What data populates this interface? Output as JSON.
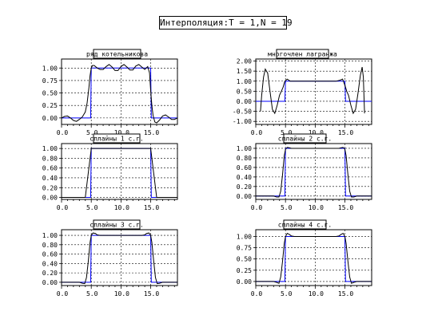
{
  "window_title": "Интерполяция:T = 1,N = 19",
  "chart_data": [
    {
      "type": "line",
      "title": "ряд котельникова",
      "xticks": [
        "0.0",
        "5.0",
        "10.0",
        "15.0"
      ],
      "yticks": [
        "0.00",
        "0.25",
        "0.50",
        "0.75",
        "1.00"
      ],
      "xlim": [
        0,
        19.5
      ],
      "ylim": [
        -0.13,
        1.18
      ],
      "grid": true,
      "series": [
        {
          "color": "#0000ff",
          "x": [
            0,
            4.9,
            5.0,
            15.0,
            15.1,
            19.5
          ],
          "y": [
            0,
            0,
            1,
            1,
            0,
            0
          ]
        },
        {
          "color": "#000000",
          "x": [
            0,
            0.5,
            1,
            1.5,
            2,
            2.5,
            3,
            3.5,
            4,
            4.3,
            4.6,
            4.8,
            5,
            5.2,
            5.5,
            6,
            6.5,
            7,
            7.5,
            8,
            8.5,
            9,
            9.5,
            10,
            10.5,
            11,
            11.5,
            12,
            12.5,
            13,
            13.5,
            14,
            14.5,
            14.8,
            15,
            15.2,
            15.4,
            15.7,
            16,
            16.5,
            17,
            17.5,
            18,
            18.5,
            19,
            19.5
          ],
          "y": [
            0.0,
            0.03,
            0.04,
            0.0,
            -0.05,
            -0.07,
            -0.03,
            0.02,
            0.12,
            0.3,
            0.6,
            0.85,
            1.0,
            1.05,
            1.05,
            1.0,
            0.97,
            0.97,
            1.03,
            1.07,
            1.02,
            0.95,
            0.95,
            1.03,
            1.07,
            1.02,
            0.96,
            0.96,
            1.04,
            1.07,
            1.02,
            0.97,
            1.03,
            0.9,
            0.55,
            0.25,
            0.05,
            -0.08,
            -0.1,
            -0.04,
            0.04,
            0.06,
            0.02,
            -0.03,
            -0.03,
            0.0
          ]
        }
      ]
    },
    {
      "type": "line",
      "title": "многочлен лагранжа",
      "xticks": [
        "0.0",
        "5.0",
        "10.0",
        "15.0"
      ],
      "yticks": [
        "-1.00",
        "-0.50",
        "0.00",
        "0.50",
        "1.00",
        "1.50",
        "2.00"
      ],
      "xlim": [
        0,
        19.5
      ],
      "ylim": [
        -1.15,
        2.1
      ],
      "grid": true,
      "series": [
        {
          "color": "#0000ff",
          "x": [
            0,
            4.9,
            5.0,
            15.0,
            15.1,
            19.5
          ],
          "y": [
            0,
            0,
            1,
            1,
            0,
            0
          ]
        },
        {
          "color": "#000000",
          "x": [
            0.8,
            1.0,
            1.3,
            1.6,
            2.0,
            2.4,
            2.8,
            3.2,
            3.6,
            4.0,
            4.3,
            4.6,
            4.9,
            5.3,
            5.8,
            6.5,
            7.5,
            8.5,
            9.5,
            10.5,
            11.5,
            12.5,
            13.5,
            14.2,
            14.6,
            15.0,
            15.3,
            15.6,
            16.0,
            16.4,
            16.8,
            17.2,
            17.6,
            17.9,
            18.1,
            18.3
          ],
          "y": [
            -0.5,
            0.3,
            1.2,
            1.6,
            1.4,
            0.5,
            -0.4,
            -0.6,
            -0.2,
            0.3,
            0.5,
            0.7,
            1.0,
            1.1,
            1.0,
            1.0,
            1.0,
            1.0,
            1.0,
            1.0,
            1.0,
            1.0,
            1.0,
            1.05,
            1.1,
            0.8,
            0.5,
            0.3,
            -0.2,
            -0.6,
            -0.4,
            0.4,
            1.3,
            1.7,
            1.2,
            -0.6
          ]
        }
      ]
    },
    {
      "type": "line",
      "title": "сплайны 1 с.г.",
      "xticks": [
        "0.0",
        "5.0",
        "10.0",
        "15.0"
      ],
      "yticks": [
        "0.00",
        "0.20",
        "0.40",
        "0.60",
        "0.80",
        "1.00"
      ],
      "xlim": [
        0,
        19.5
      ],
      "ylim": [
        -0.04,
        1.1
      ],
      "grid": true,
      "series": [
        {
          "color": "#0000ff",
          "x": [
            0,
            4.9,
            5.0,
            15.0,
            15.1,
            19.5
          ],
          "y": [
            0,
            0,
            1,
            1,
            0,
            0
          ]
        },
        {
          "color": "#000000",
          "x": [
            0,
            4.0,
            5.0,
            15.0,
            16.0,
            19.5
          ],
          "y": [
            0,
            0,
            1,
            1,
            0,
            0
          ]
        }
      ]
    },
    {
      "type": "line",
      "title": "сплайны 2 с.г.",
      "xticks": [
        "0.0",
        "5.0",
        "10.0",
        "15.0"
      ],
      "yticks": [
        "0.00",
        "0.20",
        "0.40",
        "0.60",
        "0.80",
        "1.00"
      ],
      "xlim": [
        0,
        19.5
      ],
      "ylim": [
        -0.07,
        1.1
      ],
      "grid": true,
      "series": [
        {
          "color": "#0000ff",
          "x": [
            0,
            4.9,
            5.0,
            15.0,
            15.1,
            19.5
          ],
          "y": [
            0,
            0,
            1,
            1,
            0,
            0
          ]
        },
        {
          "color": "#000000",
          "x": [
            0,
            3.0,
            3.5,
            3.9,
            4.2,
            4.5,
            4.8,
            5.0,
            5.3,
            5.7,
            6.0,
            14.0,
            14.3,
            14.7,
            15.0,
            15.2,
            15.5,
            15.8,
            16.1,
            16.5,
            17.0,
            19.5
          ],
          "y": [
            0,
            0,
            -0.02,
            -0.02,
            0.1,
            0.45,
            0.85,
            0.98,
            1.02,
            1.01,
            1.0,
            1.0,
            1.01,
            1.02,
            0.98,
            0.85,
            0.45,
            0.1,
            -0.02,
            -0.02,
            0,
            0
          ]
        }
      ]
    },
    {
      "type": "line",
      "title": "сплайны 3 с.г.",
      "xticks": [
        "0.0",
        "5.0",
        "10.0",
        "15.0"
      ],
      "yticks": [
        "0.00",
        "0.20",
        "0.40",
        "0.60",
        "0.80",
        "1.00"
      ],
      "xlim": [
        0,
        19.5
      ],
      "ylim": [
        -0.07,
        1.12
      ],
      "grid": true,
      "series": [
        {
          "color": "#0000ff",
          "x": [
            0,
            4.9,
            5.0,
            15.0,
            15.1,
            19.5
          ],
          "y": [
            0,
            0,
            1,
            1,
            0,
            0
          ]
        },
        {
          "color": "#000000",
          "x": [
            0,
            3.0,
            3.5,
            3.9,
            4.2,
            4.5,
            4.8,
            5.0,
            5.3,
            5.7,
            6.0,
            6.5,
            13.5,
            14.0,
            14.3,
            14.7,
            15.0,
            15.2,
            15.5,
            15.8,
            16.1,
            16.5,
            17.0,
            19.5
          ],
          "y": [
            0,
            0,
            -0.02,
            -0.03,
            0.1,
            0.45,
            0.85,
            1.0,
            1.05,
            1.04,
            1.01,
            1.0,
            1.0,
            1.01,
            1.04,
            1.05,
            1.0,
            0.85,
            0.45,
            0.1,
            -0.03,
            -0.02,
            0,
            0
          ]
        }
      ]
    },
    {
      "type": "line",
      "title": "сплайны 4 с.г.",
      "xticks": [
        "0.0",
        "5.0",
        "10.0",
        "15.0"
      ],
      "yticks": [
        "0.00",
        "0.25",
        "0.50",
        "0.75",
        "1.00"
      ],
      "xlim": [
        0,
        19.5
      ],
      "ylim": [
        -0.09,
        1.15
      ],
      "grid": true,
      "series": [
        {
          "color": "#0000ff",
          "x": [
            0,
            4.9,
            5.0,
            15.0,
            15.1,
            19.5
          ],
          "y": [
            0,
            0,
            1,
            1,
            0,
            0
          ]
        },
        {
          "color": "#000000",
          "x": [
            0,
            3.0,
            3.5,
            3.9,
            4.2,
            4.5,
            4.8,
            5.0,
            5.3,
            5.7,
            6.0,
            6.5,
            13.5,
            14.0,
            14.3,
            14.7,
            15.0,
            15.2,
            15.5,
            15.8,
            16.1,
            16.5,
            17.0,
            19.5
          ],
          "y": [
            0,
            0,
            -0.02,
            -0.04,
            0.1,
            0.45,
            0.85,
            1.0,
            1.07,
            1.04,
            1.01,
            1.0,
            1.0,
            1.01,
            1.04,
            1.07,
            1.0,
            0.85,
            0.45,
            0.1,
            -0.04,
            -0.02,
            0,
            0
          ]
        }
      ]
    }
  ]
}
